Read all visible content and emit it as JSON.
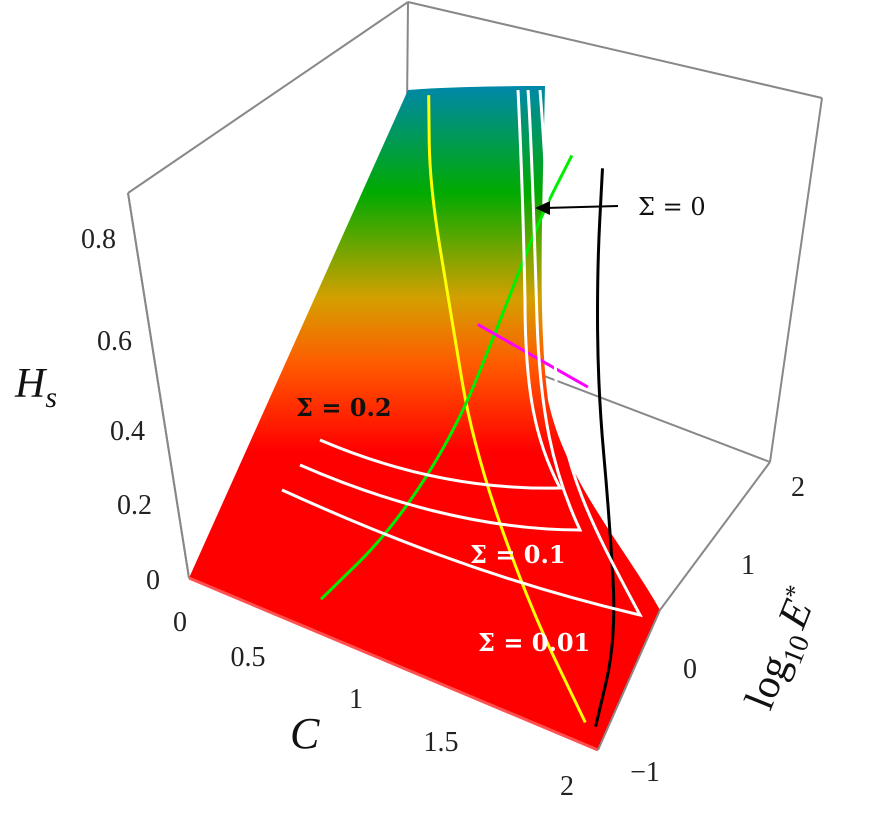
{
  "chart_data": {
    "type": "surface3d",
    "title": "",
    "axes": {
      "x": {
        "label": "C",
        "ticks": [
          "0",
          "0.5",
          "1",
          "1.5",
          "2"
        ],
        "range": [
          0,
          2
        ]
      },
      "y": {
        "label": "log",
        "label_sub": "10",
        "label_var": "E",
        "label_sup": "*",
        "ticks": [
          "−1",
          "0",
          "1",
          "2"
        ],
        "range": [
          -1,
          2
        ]
      },
      "z": {
        "label": "H",
        "label_sub": "s",
        "ticks": [
          "0",
          "0.2",
          "0.4",
          "0.6",
          "0.8"
        ],
        "range": [
          0,
          0.9
        ]
      }
    },
    "colormap": [
      "#ff0000",
      "#ff5a00",
      "#d4a000",
      "#00aa00",
      "#0088aa"
    ],
    "annotations": [
      {
        "text": "Σ = 0",
        "color": "#111111",
        "arrow": true
      },
      {
        "text": "Σ = 0.2",
        "color": "#111111"
      },
      {
        "text": "Σ = 0.1",
        "color": "#ffffff"
      },
      {
        "text": "Σ = 0.01",
        "color": "#ffffff"
      }
    ],
    "series": [
      {
        "color": "#000000",
        "x": [
          1.95,
          1.9,
          1.75,
          1.6,
          1.5,
          1.45
        ],
        "y": [
          -0.8,
          0,
          0.6,
          1.1,
          1.6,
          2
        ],
        "z": [
          0.02,
          0.12,
          0.3,
          0.5,
          0.7,
          0.88
        ]
      },
      {
        "color": "#ffff00",
        "x": [
          1.9,
          1.5,
          1.1,
          0.9,
          0.7,
          0.6
        ],
        "y": [
          -0.8,
          -0.2,
          0.5,
          1.0,
          1.5,
          2
        ],
        "z": [
          0.02,
          0.15,
          0.35,
          0.55,
          0.75,
          0.88
        ]
      },
      {
        "color": "#00ee00",
        "x": [
          0.55,
          0.8,
          1.0,
          1.1,
          1.2,
          1.3
        ],
        "y": [
          -0.5,
          0,
          0.6,
          1.2,
          1.7,
          2
        ],
        "z": [
          0.0,
          0.15,
          0.35,
          0.55,
          0.75,
          0.88
        ]
      },
      {
        "color": "#ff00ff",
        "x": [
          1.05,
          1.55
        ],
        "y": [
          0.9,
          1.1
        ],
        "z": [
          0.57,
          0.5
        ]
      }
    ]
  }
}
